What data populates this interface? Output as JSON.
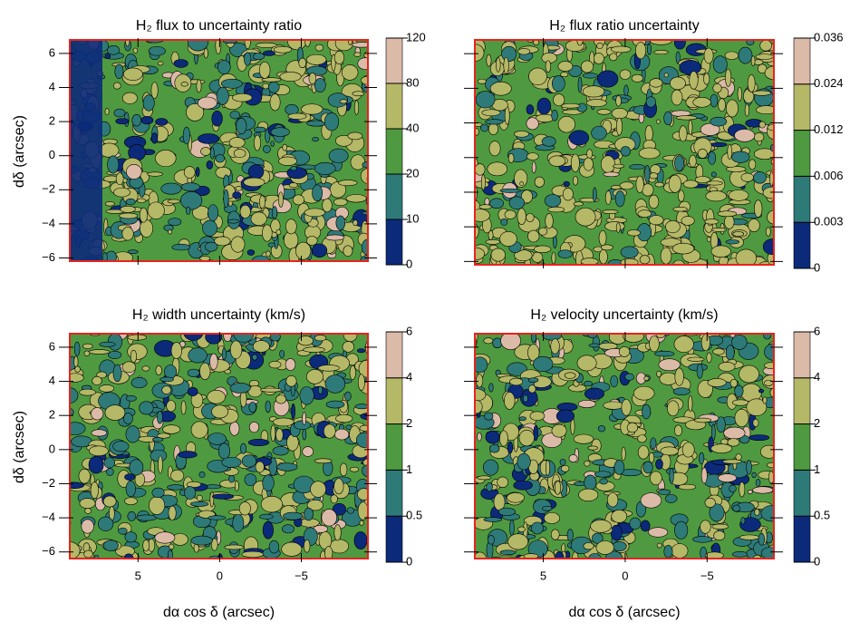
{
  "chart_data": [
    {
      "type": "contour",
      "title": "H₂ flux to uncertainty ratio",
      "ylabel": "dδ (arcsec)",
      "xlim": [
        9.4,
        -9.3
      ],
      "ylim": [
        -6.4,
        6.9
      ],
      "xticks": [
        5,
        0,
        {
          "value": -5,
          "label": "−5"
        }
      ],
      "show_xtick_labels": false,
      "yticks": [
        {
          "value": -6,
          "label": "−6"
        },
        {
          "value": -4,
          "label": "−4"
        },
        {
          "value": -2,
          "label": "−2"
        },
        0,
        2,
        4,
        6
      ],
      "colorbar": {
        "levels": [
          0,
          10,
          20,
          40,
          80,
          120
        ],
        "colors": [
          "#0c2a7a",
          "#2e7a78",
          "#4f9a40",
          "#b5b866",
          "#dcbaa8"
        ]
      }
    },
    {
      "type": "contour",
      "title": "H₂ flux ratio uncertainty",
      "xlim": [
        9.4,
        -9.3
      ],
      "ylim": [
        -6.4,
        6.9
      ],
      "xticks": [
        5,
        0,
        {
          "value": -5,
          "label": "−5"
        }
      ],
      "show_xtick_labels": false,
      "yticks": [
        {
          "value": -6,
          "label": "−6"
        },
        {
          "value": -4,
          "label": "−4"
        },
        {
          "value": -2,
          "label": "−2"
        },
        0,
        2,
        4,
        6
      ],
      "show_ytick_labels": false,
      "colorbar": {
        "levels": [
          0,
          0.003,
          0.006,
          0.012,
          0.024,
          0.036
        ],
        "colors": [
          "#0c2a7a",
          "#2e7a78",
          "#4f9a40",
          "#b5b866",
          "#dcbaa8"
        ]
      }
    },
    {
      "type": "contour",
      "title": "H₂ width uncertainty (km/s)",
      "ylabel": "dδ (arcsec)",
      "xlabel": "dα cos δ (arcsec)",
      "xlim": [
        9.4,
        -9.3
      ],
      "ylim": [
        -6.6,
        6.9
      ],
      "xticks": [
        5,
        0,
        {
          "value": -5,
          "label": "−5"
        }
      ],
      "yticks": [
        {
          "value": -6,
          "label": "−6"
        },
        {
          "value": -4,
          "label": "−4"
        },
        {
          "value": -2,
          "label": "−2"
        },
        0,
        2,
        4,
        6
      ],
      "colorbar": {
        "levels": [
          0,
          0.5,
          1,
          2,
          4,
          6
        ],
        "colors": [
          "#0c2a7a",
          "#2e7a78",
          "#4f9a40",
          "#b5b866",
          "#dcbaa8"
        ]
      }
    },
    {
      "type": "contour",
      "title": "H₂ velocity uncertainty (km/s)",
      "xlabel": "dα cos δ (arcsec)",
      "xlim": [
        9.4,
        -9.3
      ],
      "ylim": [
        -6.6,
        6.9
      ],
      "xticks": [
        5,
        0,
        {
          "value": -5,
          "label": "−5"
        }
      ],
      "yticks": [
        {
          "value": -6,
          "label": "−6"
        },
        {
          "value": -4,
          "label": "−4"
        },
        {
          "value": -2,
          "label": "−2"
        },
        0,
        2,
        4,
        6
      ],
      "show_ytick_labels": false,
      "colorbar": {
        "levels": [
          0,
          0.5,
          1,
          2,
          4,
          6
        ],
        "colors": [
          "#0c2a7a",
          "#2e7a78",
          "#4f9a40",
          "#b5b866",
          "#dcbaa8"
        ]
      }
    }
  ]
}
